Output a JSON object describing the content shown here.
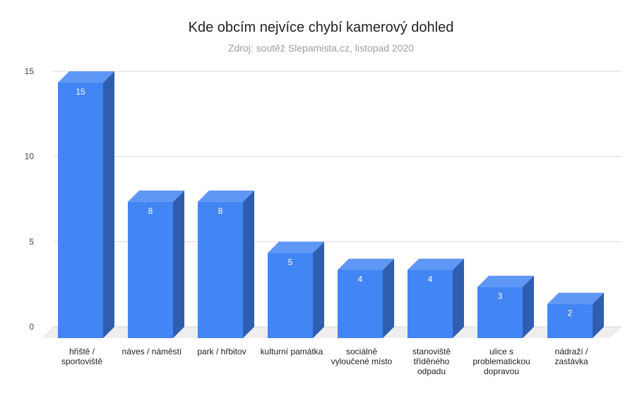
{
  "chart_data": {
    "type": "bar",
    "title": "Kde obcím nejvíce chybí kamerový dohled",
    "subtitle": "Zdroj: soutěž Slepamista.cz, listopad 2020",
    "categories": [
      [
        "hřiště /",
        "sportoviště"
      ],
      [
        "náves / náměstí"
      ],
      [
        "park / hřbitov"
      ],
      [
        "kulturní památka"
      ],
      [
        "sociálně",
        "vyloučené místo"
      ],
      [
        "stanoviště",
        "tříděného",
        "odpadu"
      ],
      [
        "ulice s",
        "problematickou",
        "dopravou"
      ],
      [
        "nádraží /",
        "zastávka"
      ]
    ],
    "values": [
      15,
      8,
      8,
      5,
      4,
      4,
      3,
      2
    ],
    "data_labels": [
      "15",
      "8",
      "8",
      "5",
      "4",
      "4",
      "3",
      "2"
    ],
    "yticks": [
      "0",
      "5",
      "10",
      "15"
    ],
    "ylim": [
      0,
      15
    ],
    "xlabel": "",
    "ylabel": "",
    "grid": true,
    "legend": "none",
    "style_3d": true,
    "colors": {
      "bar_front": "#4285f4",
      "bar_top": "#5e97f6",
      "bar_side": "#2f5eb0",
      "floor": "#eeeeee",
      "grid": "#d9d9d9"
    }
  }
}
